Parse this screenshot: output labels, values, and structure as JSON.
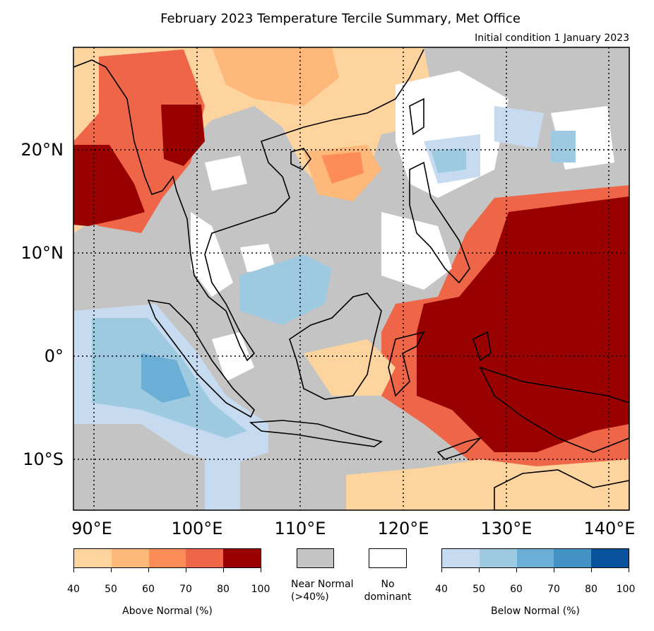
{
  "title": "February 2023 Temperature Tercile Summary, Met Office",
  "subtitle": "Initial condition 1 January 2023",
  "map": {
    "lon_range": [
      88,
      142
    ],
    "lat_range": [
      -15,
      30
    ],
    "lat_labels": [
      {
        "lat": 20,
        "text": "20°N"
      },
      {
        "lat": 10,
        "text": "10°N"
      },
      {
        "lat": 0,
        "text": "0°"
      },
      {
        "lat": -10,
        "text": "10°S"
      }
    ],
    "lon_labels": [
      {
        "lon": 90,
        "text": "90°E"
      },
      {
        "lon": 100,
        "text": "100°E"
      },
      {
        "lon": 110,
        "text": "110°E"
      },
      {
        "lon": 120,
        "text": "120°E"
      },
      {
        "lon": 130,
        "text": "130°E"
      },
      {
        "lon": 140,
        "text": "140°E"
      }
    ],
    "colors": {
      "near_normal": "#c4c4c4",
      "no_dominant": "#ffffff",
      "above": [
        "#fdd49e",
        "#fdb87a",
        "#fc8d59",
        "#ef6548",
        "#990000"
      ],
      "below": [
        "#c6dbef",
        "#9ecae1",
        "#6baed6",
        "#4292c6",
        "#08519c"
      ]
    }
  },
  "legend": {
    "above": {
      "label": "Above Normal (%)",
      "ticks": [
        "40",
        "50",
        "60",
        "70",
        "80",
        "100"
      ]
    },
    "near_normal": {
      "line1": "Near Normal",
      "line2": "(>40%)"
    },
    "no_dominant": {
      "line1": "No",
      "line2": "dominant"
    },
    "below": {
      "label": "Below Normal (%)",
      "ticks": [
        "40",
        "50",
        "60",
        "70",
        "80",
        "100"
      ]
    }
  }
}
